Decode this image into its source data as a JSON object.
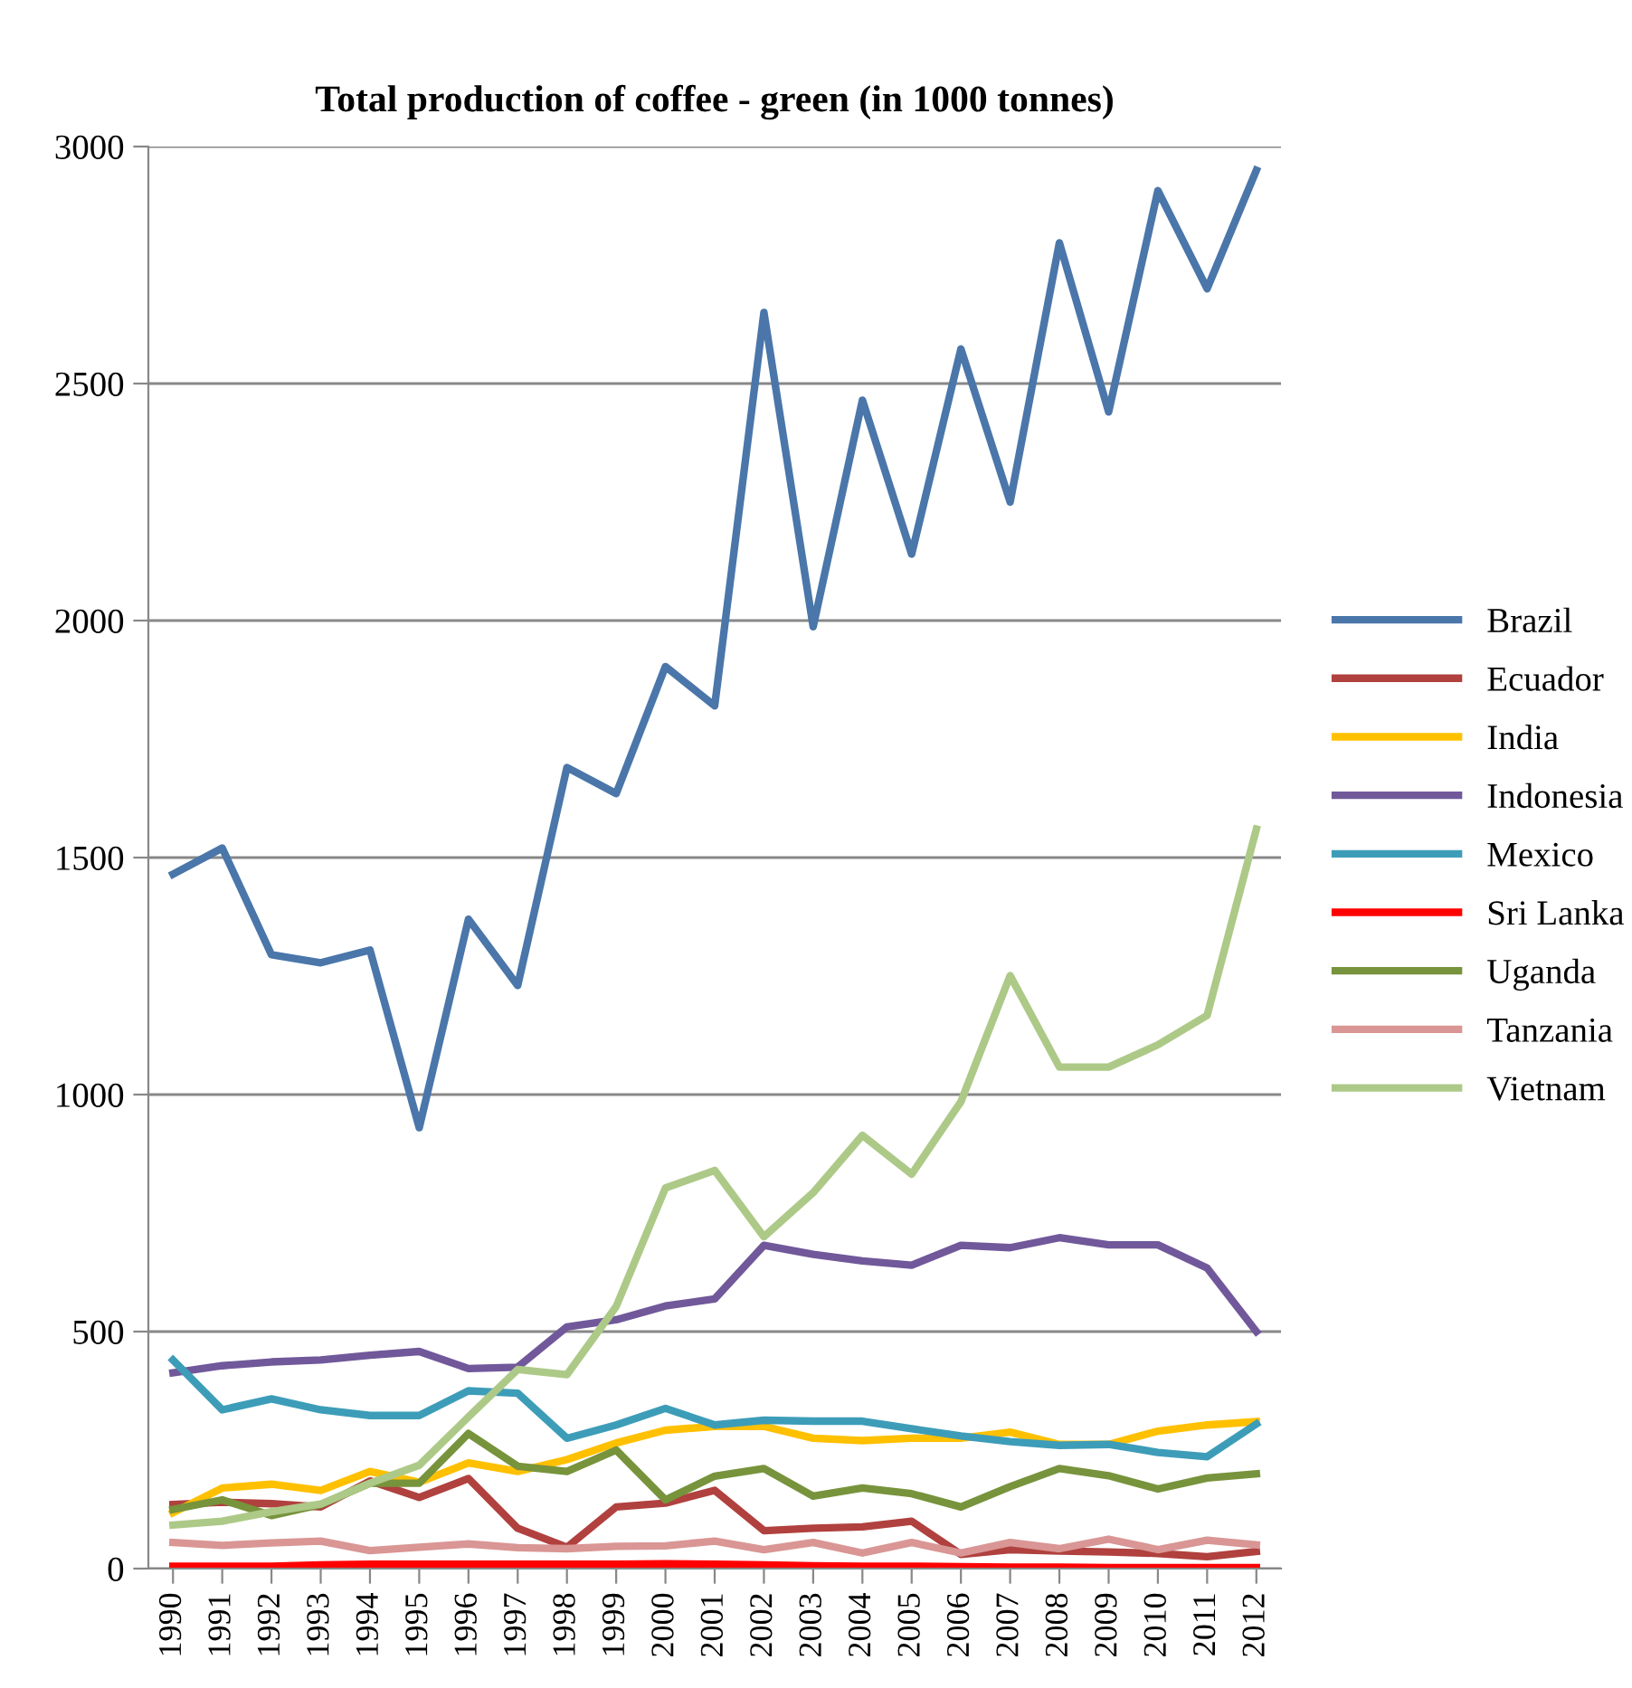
{
  "chart_data": {
    "type": "line",
    "title": "Total production of coffee - green (in 1000 tonnes)",
    "categories": [
      "1990",
      "1991",
      "1992",
      "1993",
      "1994",
      "1995",
      "1996",
      "1997",
      "1998",
      "1999",
      "2000",
      "2001",
      "2002",
      "2003",
      "2004",
      "2005",
      "2006",
      "2007",
      "2008",
      "2009",
      "2010",
      "2011",
      "2012"
    ],
    "series": [
      {
        "name": "Brazil",
        "color": "#4a76aa",
        "values": [
          1465,
          1520,
          1295,
          1278,
          1305,
          930,
          1370,
          1230,
          1690,
          1635,
          1903,
          1820,
          2650,
          1987,
          2465,
          2140,
          2573,
          2250,
          2797,
          2440,
          2907,
          2700,
          2950
        ]
      },
      {
        "name": "Ecuador",
        "color": "#b0413e",
        "values": [
          135,
          140,
          137,
          130,
          185,
          150,
          190,
          85,
          45,
          130,
          138,
          165,
          80,
          85,
          88,
          100,
          30,
          40,
          37,
          35,
          32,
          25,
          36
        ]
      },
      {
        "name": "India",
        "color": "#ffc000",
        "values": [
          118,
          170,
          178,
          165,
          205,
          182,
          223,
          205,
          230,
          265,
          292,
          300,
          300,
          275,
          270,
          275,
          275,
          288,
          262,
          262,
          290,
          303,
          310
        ]
      },
      {
        "name": "Indonesia",
        "color": "#71589a",
        "values": [
          413,
          428,
          436,
          440,
          450,
          458,
          422,
          425,
          510,
          525,
          554,
          569,
          682,
          663,
          649,
          640,
          682,
          677,
          698,
          683,
          683,
          634,
          500
        ]
      },
      {
        "name": "Mexico",
        "color": "#3d9db8",
        "values": [
          440,
          335,
          358,
          335,
          323,
          323,
          375,
          370,
          275,
          303,
          338,
          303,
          313,
          311,
          311,
          295,
          280,
          268,
          260,
          262,
          245,
          236,
          305
        ]
      },
      {
        "name": "Sri Lanka",
        "color": "#ff0000",
        "values": [
          5,
          5,
          5,
          8,
          9,
          9,
          9,
          9,
          9,
          9,
          10,
          9,
          8,
          6,
          5,
          5,
          4,
          3,
          3,
          2,
          2,
          2,
          2
        ]
      },
      {
        "name": "Uganda",
        "color": "#77933c",
        "values": [
          125,
          145,
          112,
          135,
          180,
          180,
          285,
          216,
          205,
          250,
          145,
          195,
          211,
          153,
          170,
          158,
          130,
          173,
          211,
          196,
          168,
          191,
          200
        ]
      },
      {
        "name": "Tanzania",
        "color": "#d99694",
        "values": [
          55,
          49,
          54,
          58,
          38,
          45,
          52,
          44,
          42,
          47,
          48,
          58,
          40,
          55,
          33,
          55,
          33,
          55,
          42,
          62,
          40,
          60,
          50
        ]
      },
      {
        "name": "Vietnam",
        "color": "#adc987",
        "values": [
          92,
          100,
          120,
          136,
          180,
          218,
          320,
          420,
          409,
          553,
          803,
          840,
          700,
          793,
          914,
          832,
          985,
          1251,
          1058,
          1058,
          1105,
          1167,
          1560
        ]
      }
    ],
    "ylim": [
      0,
      3000
    ],
    "yticks": [
      0,
      500,
      1000,
      1500,
      2000,
      2500,
      3000
    ],
    "grid": "y",
    "legend": "right",
    "line_style": "solid",
    "marker": "none"
  }
}
